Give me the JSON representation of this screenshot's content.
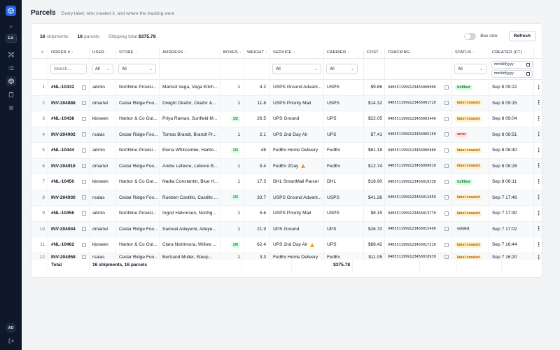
{
  "sidebar": {
    "workspace_badge": "EA",
    "user_initials": "AD"
  },
  "header": {
    "title": "Parcels",
    "subtitle": "Every label, who created it, and where the tracking went"
  },
  "summary": {
    "shipments_count": "16",
    "shipments_label": "shipments",
    "parcels_count": "16",
    "parcels_label": "parcels",
    "total_label": "Shipping total",
    "total_value": "$375.78"
  },
  "controls": {
    "box_size_label": "Box size",
    "box_size_on": false,
    "refresh_label": "Refresh"
  },
  "columns": {
    "n": "#",
    "order": "ORDER #",
    "user": "USER",
    "store": "STORE",
    "address": "ADDRESS",
    "boxes": "BOXES",
    "weight": "WEIGHT",
    "service": "SERVICE",
    "carrier": "CARRIER",
    "cost": "COST",
    "tracking": "TRACKING",
    "status": "STATUS",
    "created": "CREATED (CT)"
  },
  "filters": {
    "search_placeholder": "Search...",
    "user": "All",
    "store": "All",
    "service": "All",
    "carrier": "All",
    "status": "All",
    "date_from_placeholder": "mm/dd/yyyy",
    "date_to_placeholder": "mm/dd/yyyy"
  },
  "rows": [
    {
      "n": "1",
      "order": "#NL-10432",
      "user": "admin",
      "store": "Northline Provisi...",
      "address": "Marisol Vega, Vega Kitch...",
      "boxes": "1",
      "boxes_pill": false,
      "weight": "4.2",
      "service": "USPS Ground Advant...",
      "warn": false,
      "carrier": "USPS",
      "cost": "$9.86",
      "tracking": "9405511999123456000000",
      "status": "fulfilled",
      "status_kind": "fulfilled",
      "created": "Sep 8 09:22"
    },
    {
      "n": "2",
      "order": "INV-204888",
      "user": "dmartel",
      "store": "Cedar Ridge Foo...",
      "address": "Dwight Okafor, Okafor &...",
      "boxes": "1",
      "boxes_pill": false,
      "weight": "11.8",
      "service": "USPS Priority Mail",
      "warn": false,
      "carrier": "USPS",
      "cost": "$14.32",
      "tracking": "9405511999123456001720",
      "status": "label created",
      "status_kind": "label",
      "created": "Sep 8 09:15"
    },
    {
      "n": "3",
      "order": "#NL-10438",
      "user": "kbowen",
      "store": "Harbor & Co Out...",
      "address": "Priya Raman, Sunfield M...",
      "boxes": "1/2",
      "boxes_pill": true,
      "weight": "26.5",
      "service": "UPS Ground",
      "warn": false,
      "carrier": "UPS",
      "cost": "$22.05",
      "tracking": "9405511999123456003440",
      "status": "label created",
      "status_kind": "label",
      "created": "Sep 8 09:04"
    },
    {
      "n": "4",
      "order": "INV-204902",
      "user": "rsalas",
      "store": "Cedar Ridge Foo...",
      "address": "Tomas Brandt, Brandt Pr...",
      "boxes": "1",
      "boxes_pill": false,
      "weight": "2.1",
      "service": "UPS 2nd Day Air",
      "warn": false,
      "carrier": "UPS",
      "cost": "$7.41",
      "tracking": "9405511999123456005160",
      "status": "error",
      "status_kind": "error",
      "created": "Sep 8 08:51"
    },
    {
      "n": "5",
      "order": "#NL-10444",
      "user": "admin",
      "store": "Northline Provisi...",
      "address": "Elena Whitcombe, Harbo...",
      "boxes": "1/3",
      "boxes_pill": true,
      "weight": "48",
      "service": "FedEx Home Delivery",
      "warn": false,
      "carrier": "FedEx",
      "cost": "$61.18",
      "tracking": "9405511999123456006880",
      "status": "label created",
      "status_kind": "label",
      "created": "Sep 8 08:40"
    },
    {
      "n": "6",
      "order": "INV-204916",
      "user": "dmartel",
      "store": "Cedar Ridge Foo...",
      "address": "Andre Lefevre, Lefevre B...",
      "boxes": "1",
      "boxes_pill": false,
      "weight": "9.4",
      "service": "FedEx 2Day",
      "warn": true,
      "carrier": "FedEx",
      "cost": "$12.74",
      "tracking": "9405511999123456008610",
      "status": "label created",
      "status_kind": "label",
      "created": "Sep 8 08:28"
    },
    {
      "n": "7",
      "order": "#NL-10450",
      "user": "kbowen",
      "store": "Harbor & Co Out...",
      "address": "Nadia Constantin, Blue H...",
      "boxes": "1",
      "boxes_pill": false,
      "weight": "17.3",
      "service": "DHL SmartMail Parcel",
      "warn": false,
      "carrier": "DHL",
      "cost": "$18.90",
      "tracking": "9405511999123456010330",
      "status": "fulfilled",
      "status_kind": "fulfilled",
      "created": "Sep 8 08:11"
    },
    {
      "n": "8",
      "order": "INV-204930",
      "user": "rsalas",
      "store": "Cedar Ridge Foo...",
      "address": "Rueben Castillo, Castillo ...",
      "boxes": "1/2",
      "boxes_pill": true,
      "weight": "33.7",
      "service": "USPS Ground Advant...",
      "warn": false,
      "carrier": "USPS",
      "cost": "$41.36",
      "tracking": "9405511999123456012050",
      "status": "label created",
      "status_kind": "label",
      "created": "Sep 7 17:46"
    },
    {
      "n": "9",
      "order": "#NL-10456",
      "user": "admin",
      "store": "Northline Provisi...",
      "address": "Ingrid Halvorsen, Northg...",
      "boxes": "1",
      "boxes_pill": false,
      "weight": "5.6",
      "service": "USPS Priority Mail",
      "warn": false,
      "carrier": "USPS",
      "cost": "$8.15",
      "tracking": "9405511999123456013770",
      "status": "label created",
      "status_kind": "label",
      "created": "Sep 7 17:30"
    },
    {
      "n": "10",
      "order": "INV-204944",
      "user": "dmartel",
      "store": "Cedar Ridge Foo...",
      "address": "Samuel Adeyemi, Adeye...",
      "boxes": "1",
      "boxes_pill": false,
      "weight": "21.9",
      "service": "UPS Ground",
      "warn": false,
      "carrier": "UPS",
      "cost": "$26.70",
      "tracking": "9405511999123456015490",
      "status": "voided",
      "status_kind": "voided",
      "created": "Sep 7 17:02"
    },
    {
      "n": "11",
      "order": "#NL-10462",
      "user": "kbowen",
      "store": "Harbor & Co Out...",
      "address": "Clara Nishimura, Willow ...",
      "boxes": "1/4",
      "boxes_pill": true,
      "weight": "62.4",
      "service": "UPS 2nd Day Air",
      "warn": true,
      "carrier": "UPS",
      "cost": "$88.42",
      "tracking": "9405511999123456017210",
      "status": "label created",
      "status_kind": "label",
      "created": "Sep 7 16:44"
    },
    {
      "n": "12",
      "order": "INV-204958",
      "user": "rsalas",
      "store": "Cedar Ridge Foo...",
      "address": "Bertrand Muller, Steep...",
      "boxes": "1",
      "boxes_pill": false,
      "weight": "3.3",
      "service": "FedEx Home Delivery",
      "warn": false,
      "carrier": "FedEx",
      "cost": "$11.05",
      "tracking": "9405511999123456018930",
      "status": "label created",
      "status_kind": "label",
      "created": "Sep 7 16:20"
    }
  ],
  "footer": {
    "label": "Total",
    "shipments": "16 shipments, 16 parcels",
    "cost": "$375.78"
  },
  "colors": {
    "sidebar_bg": "#0f172a",
    "accent": "#2563eb",
    "fulfilled": "#15803d",
    "label_created": "#b45309",
    "error": "#b91c1c"
  }
}
